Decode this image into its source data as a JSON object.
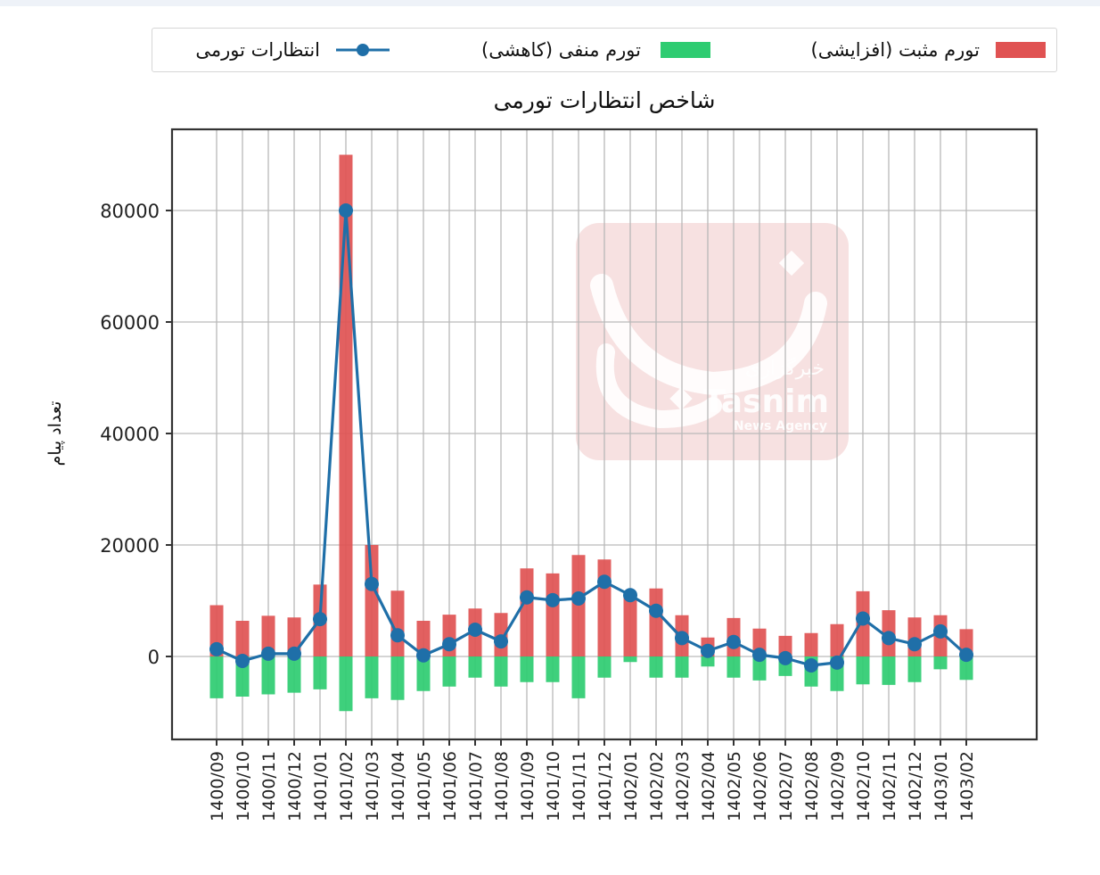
{
  "chart_data": {
    "type": "bar",
    "title": "شاخص انتظارات تورمی",
    "xlabel": "",
    "ylabel": "تعداد پیام",
    "ylim": [
      -15500,
      94000
    ],
    "yticks": [
      0,
      20000,
      40000,
      60000,
      80000
    ],
    "ytick_labels": [
      "0",
      "20000",
      "40000",
      "60000",
      "80000"
    ],
    "grid": true,
    "legend_position": "top (above plot, outside)",
    "categories": [
      "1400/09",
      "1400/10",
      "1400/11",
      "1400/12",
      "1401/01",
      "1401/02",
      "1401/03",
      "1401/04",
      "1401/05",
      "1401/06",
      "1401/07",
      "1401/08",
      "1401/09",
      "1401/10",
      "1401/11",
      "1401/12",
      "1402/01",
      "1402/02",
      "1402/03",
      "1402/04",
      "1402/05",
      "1402/06",
      "1402/07",
      "1402/08",
      "1402/09",
      "1402/10",
      "1402/11",
      "1402/12",
      "1403/01",
      "1403/02"
    ],
    "series": [
      {
        "name": "تورم مثبت (افزایشی)",
        "kind": "bar",
        "color": "#e05252",
        "values": [
          9200,
          6400,
          7300,
          7000,
          12900,
          90000,
          20000,
          11800,
          6400,
          7500,
          8600,
          7800,
          15800,
          14900,
          18200,
          17400,
          11200,
          12200,
          7400,
          3400,
          6900,
          5000,
          3700,
          4200,
          5800,
          11700,
          8300,
          7000,
          7400,
          4900
        ]
      },
      {
        "name": "تورم منفی (کاهشی)",
        "kind": "bar",
        "color": "#2ecc71",
        "values": [
          -7500,
          -7200,
          -6800,
          -6500,
          -5900,
          -9800,
          -7500,
          -7800,
          -6200,
          -5400,
          -3800,
          -5400,
          -4600,
          -4600,
          -7500,
          -3800,
          -1000,
          -3800,
          -3800,
          -1800,
          -3800,
          -4300,
          -3500,
          -5400,
          -6200,
          -5000,
          -5100,
          -4600,
          -2300,
          -4200
        ]
      },
      {
        "name": "انتظارات تورمی",
        "kind": "line",
        "color": "#1f6fa8",
        "marker": "circle",
        "values": [
          1300,
          -800,
          500,
          500,
          6700,
          80000,
          13000,
          3800,
          200,
          2200,
          4800,
          2700,
          10600,
          10100,
          10400,
          13400,
          11000,
          8200,
          3300,
          1000,
          2600,
          300,
          -300,
          -1600,
          -1100,
          6800,
          3300,
          2200,
          4500,
          300
        ]
      }
    ],
    "watermark": {
      "line1": "خبرگزاری",
      "line2": "Tasnim",
      "line3": "News Agency"
    }
  },
  "legend": {
    "items": [
      {
        "label": "تورم مثبت (افزایشی)",
        "color": "#e05252",
        "kind": "bar"
      },
      {
        "label": "تورم منفی (کاهشی)",
        "color": "#2ecc71",
        "kind": "bar"
      },
      {
        "label": "انتظارات تورمی",
        "color": "#1f6fa8",
        "kind": "line"
      }
    ]
  }
}
